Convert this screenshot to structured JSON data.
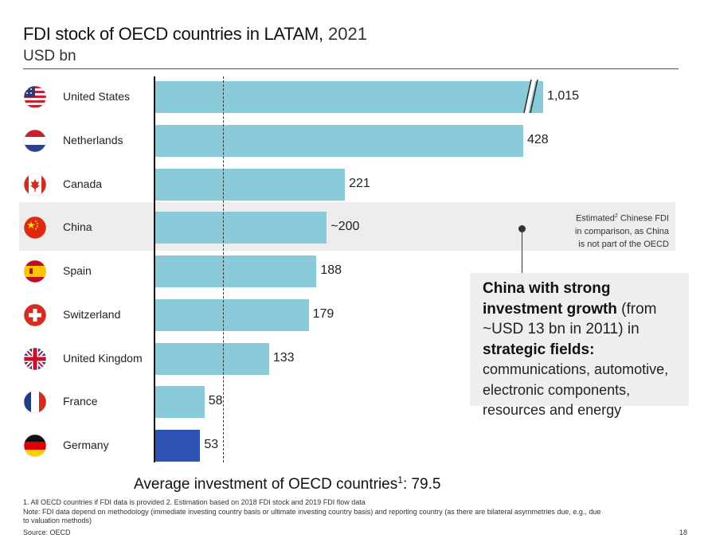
{
  "title": {
    "main": "FDI stock of OECD countries in LATAM,",
    "year": "2021",
    "unit": "USD bn"
  },
  "chart_data": {
    "type": "bar",
    "orientation": "horizontal",
    "categories": [
      "United States",
      "Netherlands",
      "Canada",
      "China",
      "Spain",
      "Switzerland",
      "United Kingdom",
      "France",
      "Germany"
    ],
    "values": [
      1015,
      428,
      221,
      200,
      188,
      179,
      133,
      58,
      53
    ],
    "value_labels": [
      "1,015",
      "428",
      "221",
      "~200",
      "188",
      "179",
      "133",
      "58",
      "53"
    ],
    "highlight_category": "Germany",
    "highlight_color": "#2f54b4",
    "bar_color": "#89cbd9",
    "axis_break_on": "United States",
    "reference_line": {
      "value": 79.5,
      "label": "Average investment of OECD countries",
      "sup": "1",
      "value_text": ": 79.5"
    },
    "flags": [
      "us-flag-icon",
      "netherlands-flag-icon",
      "canada-flag-icon",
      "china-flag-icon",
      "spain-flag-icon",
      "switzerland-flag-icon",
      "uk-flag-icon",
      "france-flag-icon",
      "germany-flag-icon"
    ]
  },
  "china_note": {
    "line1_pre": "Estimated",
    "line1_sup": "2",
    "line1_post": " Chinese FDI",
    "line2": "in comparison, as China",
    "line3": "is not part of the OECD"
  },
  "callout": {
    "bold1": "China with strong investment growth",
    "normal1": " (from ~USD 13 bn in 2011) in ",
    "bold2": "strategic fields:",
    "normal2": " communications, automotive, electronic components, resources and energy"
  },
  "footnotes": {
    "line1": "1. All OECD countries if FDI data is provided 2. Estimation based on 2018 FDI stock and 2019 FDI flow data",
    "line2": "Note: FDI data depend on methodology (immediate investing country basis or ultimate investing country basis) and reporting country (as there are bilateral asymmetries due, e.g., due",
    "line3": "to valuation methods)",
    "source": "Source: OECD"
  },
  "page_number": "18"
}
